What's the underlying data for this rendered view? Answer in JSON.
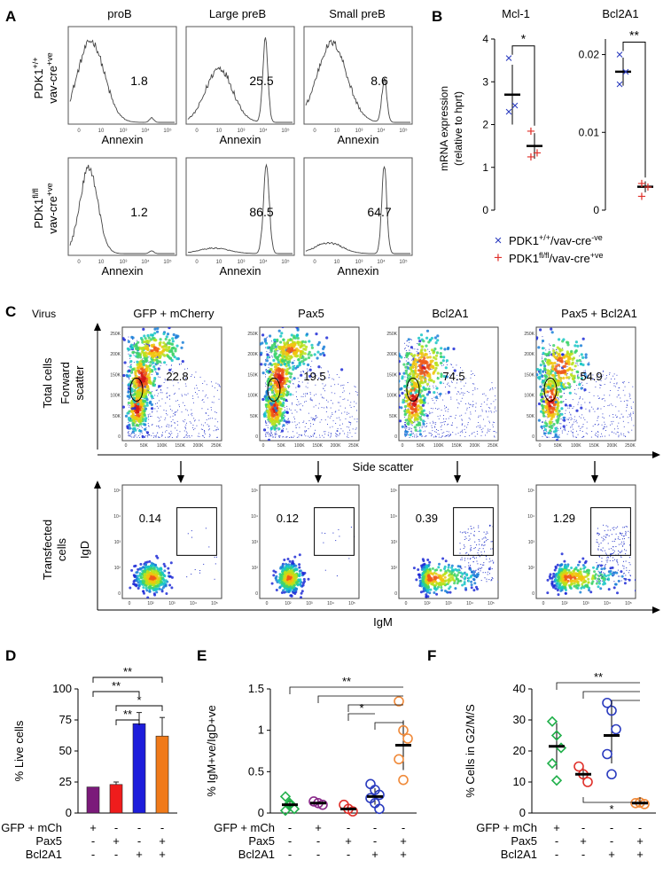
{
  "panels": {
    "A": {
      "letter": "A",
      "columns": [
        "proB",
        "Large preB",
        "Small preB"
      ],
      "rows": [
        {
          "label_main": "PDK1",
          "label_sup": "+/+",
          "label_sub": "vav-cre",
          "label_sub_sup": "+ve",
          "values": [
            "1.8",
            "25.5",
            "8.6"
          ]
        },
        {
          "label_main": "PDK1",
          "label_sup": "fl/fl",
          "label_sub": "vav-cre",
          "label_sub_sup": "+ve",
          "values": [
            "1.2",
            "86.5",
            "64.7"
          ]
        }
      ],
      "xlabel": "Annexin",
      "ticks": [
        "0",
        "10",
        "10³",
        "10⁴",
        "10⁵"
      ]
    },
    "B": {
      "letter": "B",
      "ylabel1": "mRNA expression",
      "ylabel2": "(relative to hprt)",
      "legend": [
        {
          "marker": "×",
          "main": "PDK1",
          "sup": "+/+",
          "rest": "/vav-cre",
          "rest_sup": "-ve",
          "color": "#2b3cbf"
        },
        {
          "marker": "+",
          "main": "PDK1",
          "sup": "fl/fl",
          "rest": "/vav-cre",
          "rest_sup": "+ve",
          "color": "#e0302a"
        }
      ]
    },
    "C": {
      "letter": "C",
      "virus_label": "Virus",
      "columns": [
        "GFP + mCherry",
        "Pax5",
        "Bcl2A1",
        "Pax5 + Bcl2A1"
      ],
      "row1_label": [
        "Total cells",
        "Forward",
        "scatter"
      ],
      "row2_label": [
        "Transfected",
        "cells",
        "IgD"
      ],
      "row1_values": [
        "22.8",
        "19.5",
        "74.5",
        "54.9"
      ],
      "row2_values": [
        "0.14",
        "0.12",
        "0.39",
        "1.29"
      ],
      "row1_xlabel": "Side scatter",
      "row2_xlabel": "IgM",
      "lin_ticks": [
        "0",
        "50K",
        "100K",
        "150K",
        "200K",
        "250K"
      ],
      "log_ticks": [
        "0",
        "10²",
        "10³",
        "10⁴",
        "10⁵"
      ]
    },
    "D": {
      "letter": "D"
    },
    "E": {
      "letter": "E"
    },
    "F": {
      "letter": "F"
    },
    "treatments": [
      "GFP + mCh",
      "Pax5",
      "Bcl2A1"
    ]
  },
  "chart_data": [
    {
      "id": "B-Mcl1",
      "type": "scatter",
      "title": "Mcl-1",
      "ylabel": "mRNA expression (relative to hprt)",
      "ylim": [
        0,
        4
      ],
      "yticks": [
        0,
        1,
        2,
        3,
        4
      ],
      "series": [
        {
          "name": "PDK1+/+/vav-cre-ve",
          "values": [
            3.55,
            2.45,
            2.3
          ],
          "mean": 2.7,
          "sd": 0.7,
          "color": "#2b3cbf"
        },
        {
          "name": "PDK1fl/fl/vav-cre+ve",
          "values": [
            1.85,
            1.35,
            1.25
          ],
          "mean": 1.5,
          "sd": 0.3,
          "color": "#e0302a"
        }
      ],
      "significance": [
        {
          "from": 0,
          "to": 1,
          "label": "*"
        }
      ]
    },
    {
      "id": "B-Bcl2A1",
      "type": "scatter",
      "title": "Bcl2A1",
      "ylim": [
        0,
        0.022
      ],
      "yticks": [
        0,
        0.01,
        0.02
      ],
      "ytick_labels": [
        "0",
        "0.01",
        "0.02"
      ],
      "series": [
        {
          "name": "PDK1+/+/vav-cre-ve",
          "values": [
            0.02,
            0.0178,
            0.0162
          ],
          "mean": 0.0178,
          "sd": 0.0018,
          "color": "#2b3cbf"
        },
        {
          "name": "PDK1fl/fl/vav-cre+ve",
          "values": [
            0.0035,
            0.003,
            0.0018
          ],
          "mean": 0.003,
          "sd": 0.0007,
          "color": "#e0302a"
        }
      ],
      "significance": [
        {
          "from": 0,
          "to": 1,
          "label": "**"
        }
      ]
    },
    {
      "id": "D",
      "type": "bar",
      "ylabel": "% Live cells",
      "ylim": [
        0,
        100
      ],
      "yticks": [
        0,
        25,
        50,
        75,
        100
      ],
      "categories": [
        "GFP + mCh",
        "Pax5",
        "Bcl2A1",
        "Pax5 + Bcl2A1"
      ],
      "values": [
        21,
        23,
        72,
        62
      ],
      "errors": [
        0,
        2,
        9,
        15
      ],
      "colors": [
        "#7b1a7a",
        "#ef1c1c",
        "#1d1ddb",
        "#f07a1a"
      ],
      "treatment_signs": [
        [
          "+",
          "-",
          "-",
          "-"
        ],
        [
          "-",
          "+",
          "-",
          "+"
        ],
        [
          "-",
          "-",
          "+",
          "+"
        ]
      ],
      "significance": [
        {
          "from": 0,
          "to": 3,
          "label": "**"
        },
        {
          "from": 0,
          "to": 2,
          "label": "**"
        },
        {
          "from": 1,
          "to": 3,
          "label": "*"
        },
        {
          "from": 1,
          "to": 2,
          "label": "**"
        }
      ]
    },
    {
      "id": "E",
      "type": "scatter",
      "ylabel": "% IgM+ve/IgD+ve",
      "ylim": [
        0,
        1.5
      ],
      "yticks": [
        0,
        0.5,
        1,
        1.5
      ],
      "ytick_labels": [
        "0",
        "0.5",
        "1",
        "1.5"
      ],
      "groups": [
        {
          "values": [
            0.2,
            0.1,
            0.05,
            0.03,
            0.12
          ],
          "mean": 0.1,
          "sd": 0.06,
          "color": "#21b04b",
          "marker": "diamond"
        },
        {
          "values": [
            0.14,
            0.12,
            0.1
          ],
          "mean": 0.12,
          "sd": 0.02,
          "color": "#8a2a8a",
          "marker": "circle"
        },
        {
          "values": [
            0.1,
            0.05,
            0.02
          ],
          "mean": 0.05,
          "sd": 0.04,
          "color": "#e0302a",
          "marker": "circle"
        },
        {
          "values": [
            0.35,
            0.28,
            0.22,
            0.18,
            0.12,
            0.05
          ],
          "mean": 0.2,
          "sd": 0.1,
          "color": "#2b3cbf",
          "marker": "circle"
        },
        {
          "values": [
            1.35,
            1.0,
            0.9,
            0.65,
            0.4
          ],
          "mean": 0.82,
          "sd": 0.3,
          "color": "#f08a3a",
          "marker": "circle"
        }
      ],
      "treatment_signs": [
        [
          "-",
          "+",
          "-",
          "-",
          "-"
        ],
        [
          "-",
          "-",
          "+",
          "-",
          "+"
        ],
        [
          "-",
          "-",
          "-",
          "+",
          "+"
        ]
      ],
      "significance": [
        {
          "from": 0,
          "to": 4,
          "label": "**"
        },
        {
          "from": 1,
          "to": 4,
          "label": ""
        },
        {
          "from": 2,
          "to": 4,
          "label": ""
        },
        {
          "from": 2,
          "to": 3,
          "label": "*"
        },
        {
          "from": 3,
          "to": 4,
          "label": ""
        }
      ]
    },
    {
      "id": "F",
      "type": "scatter",
      "ylabel": "% Cells in G2/M/S",
      "ylim": [
        0,
        40
      ],
      "yticks": [
        0,
        10,
        20,
        30,
        40
      ],
      "groups": [
        {
          "values": [
            29.5,
            25,
            21,
            16,
            10.5
          ],
          "mean": 21.5,
          "sd": 7.5,
          "color": "#21b04b",
          "marker": "diamond"
        },
        {
          "values": [
            15,
            12.5,
            10
          ],
          "mean": 12.5,
          "sd": 2.5,
          "color": "#e0302a",
          "marker": "circle"
        },
        {
          "values": [
            35.5,
            33,
            27,
            19,
            12.5
          ],
          "mean": 25,
          "sd": 9,
          "color": "#2b3cbf",
          "marker": "circle"
        },
        {
          "values": [
            3.2,
            3.4,
            2.9
          ],
          "mean": 3.2,
          "sd": 0.3,
          "color": "#f08a3a",
          "marker": "circle"
        }
      ],
      "treatment_signs": [
        [
          "+",
          "-",
          "-",
          "-"
        ],
        [
          "-",
          "+",
          "-",
          "+"
        ],
        [
          "-",
          "-",
          "+",
          "+"
        ]
      ],
      "significance": [
        {
          "from": 0,
          "to": 3,
          "label": "**"
        },
        {
          "from": 1,
          "to": 3,
          "label": ""
        },
        {
          "from": 2,
          "to": 3,
          "label": ""
        },
        {
          "from": 1,
          "to": 3,
          "label": "*",
          "below": true
        }
      ]
    }
  ]
}
